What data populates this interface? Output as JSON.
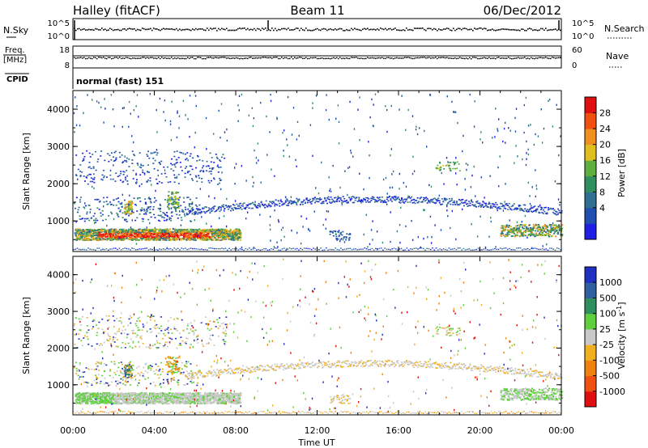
{
  "header": {
    "station": "Halley (fitACF)",
    "beam": "Beam 11",
    "date": "06/Dec/2012"
  },
  "top_panels": {
    "nsky_label": "N.Sky",
    "nsky_ticks": [
      "10^5",
      "10^0"
    ],
    "nsearch_label": "N.Search",
    "nsearch_ticks": [
      "10^5",
      "10^0"
    ],
    "freq_label_1": "Freq.",
    "freq_label_2": "[MHz]",
    "freq_ticks": [
      "18",
      "8"
    ],
    "nave_label": "Nave",
    "nave_ticks": [
      "60",
      "0"
    ],
    "cpid_label": "CPID",
    "cpid_value": "normal (fast) 151"
  },
  "chart_data": [
    {
      "type": "heatmap",
      "name": "power",
      "ylabel": "Slant Range [km]",
      "yticks": [
        "4000",
        "3000",
        "2000",
        "1000"
      ],
      "ylim": [
        180,
        4500
      ],
      "xlim": [
        0,
        24
      ],
      "colorbar_label": "Power [dB]",
      "colorbar_ticks": [
        "28",
        "24",
        "20",
        "16",
        "12",
        "8",
        "4"
      ],
      "colors": [
        "#1f1fe6",
        "#1f4fb0",
        "#2f6f8f",
        "#2f8f5f",
        "#5faf3f",
        "#e0c020",
        "#f09020",
        "#f05010",
        "#e01010"
      ]
    },
    {
      "type": "heatmap",
      "name": "velocity",
      "ylabel": "Slant Range [km]",
      "yticks": [
        "4000",
        "3000",
        "2000",
        "1000"
      ],
      "ylim": [
        180,
        4500
      ],
      "xlim": [
        0,
        24
      ],
      "xlabel": "Time UT",
      "xticks": [
        "00:00",
        "04:00",
        "08:00",
        "12:00",
        "16:00",
        "20:00",
        "00:00"
      ],
      "colorbar_label": "Velocity [m s^-1]",
      "colorbar_ticks": [
        "1000",
        "500",
        "100",
        "25",
        "-25",
        "-100",
        "-500",
        "-1000"
      ],
      "colors": [
        "#2030c0",
        "#2f60a0",
        "#2f8f5f",
        "#5fcf3f",
        "#c8c8c8",
        "#f0b020",
        "#f08010",
        "#f05010",
        "#e01010"
      ]
    }
  ]
}
